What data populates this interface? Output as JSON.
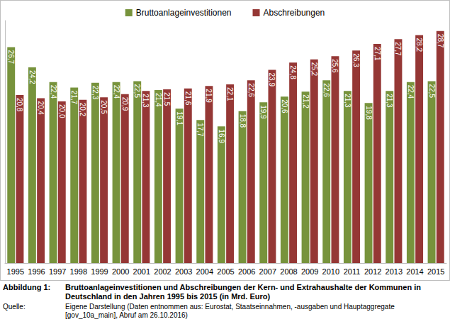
{
  "chart_data": {
    "type": "bar",
    "figure_label": "Abbildung 1:",
    "title": "Bruttoanlageinvestitionen und Abschreibungen der Kern- und Extrahaushalte der Kommunen in Deutschland in den Jahren 1995 bis 2015 (in Mrd. Euro)",
    "source_label": "Quelle:",
    "source": "Eigene Darstellung (Daten entnommen aus: Eurostat, Staatseinnahmen, -ausgaben und Hauptaggregate [gov_10a_main], Abruf am 26.10.2016)",
    "categories": [
      "1995",
      "1996",
      "1997",
      "1998",
      "1999",
      "2000",
      "2001",
      "2002",
      "2003",
      "2004",
      "2005",
      "2006",
      "2007",
      "2008",
      "2009",
      "2010",
      "2011",
      "2012",
      "2013",
      "2014",
      "2015"
    ],
    "series": [
      {
        "name": "Bruttoanlageinvestitionen",
        "color": "#77933c",
        "values": [
          26.7,
          24.2,
          22.4,
          21.7,
          22.3,
          22.4,
          22.5,
          21.4,
          19.1,
          17.7,
          16.9,
          18.8,
          19.9,
          20.6,
          21.2,
          22.6,
          21.3,
          19.8,
          21.3,
          22.4,
          22.5
        ],
        "value_labels": [
          "26,7",
          "24,2",
          "22,4",
          "21,7",
          "22,3",
          "22,4",
          "22,5",
          "21,4",
          "19,1",
          "17,7",
          "16,9",
          "18,8",
          "19,9",
          "20,6",
          "21,2",
          "22,6",
          "21,3",
          "19,8",
          "21,3",
          "22,4",
          "22,5"
        ]
      },
      {
        "name": "Abschreibungen",
        "color": "#953735",
        "values": [
          20.8,
          20.4,
          20.0,
          20.2,
          20.5,
          20.9,
          21.3,
          21.5,
          21.6,
          21.9,
          22.1,
          22.6,
          23.9,
          24.8,
          25.2,
          25.6,
          26.3,
          27.1,
          27.7,
          28.2,
          28.7
        ],
        "value_labels": [
          "20,8",
          "20,4",
          "20,0",
          "20,2",
          "20,5",
          "20,9",
          "21,3",
          "21,5",
          "21,6",
          "21,9",
          "22,1",
          "22,6",
          "23,9",
          "24,8",
          "25,2",
          "25,6",
          "26,3",
          "27,1",
          "27,7",
          "28,2",
          "28,7"
        ]
      }
    ],
    "ylim": [
      0,
      30
    ],
    "legend": "top",
    "data_labels": true,
    "tick_labels": "x",
    "grid": false
  }
}
